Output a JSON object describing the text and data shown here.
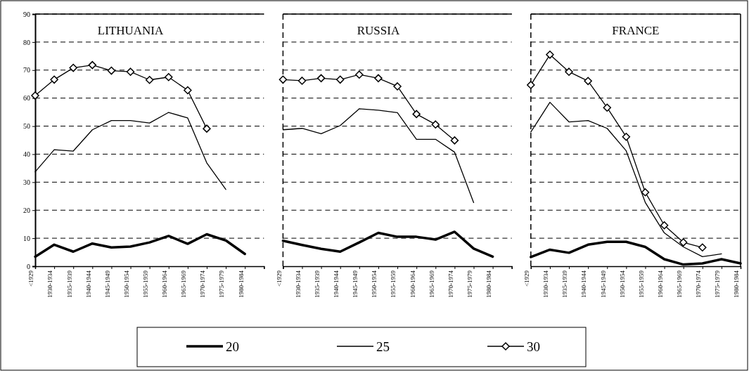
{
  "chart_data": [
    {
      "type": "line",
      "title": "LITHUANIA",
      "categories": [
        "<1929",
        "1930-1934",
        "1935-1939",
        "1940-1944",
        "1945-1949",
        "1950-1954",
        "1955-1959",
        "1960-1964",
        "1965-1969",
        "1970-1974",
        "1975-1979",
        "1980-1984"
      ],
      "ylim": [
        0,
        90
      ],
      "yticks": [
        0,
        10,
        20,
        30,
        40,
        50,
        60,
        70,
        80,
        90
      ],
      "grid": "y",
      "legend": "bottom",
      "series": [
        {
          "name": "20",
          "color": "#000000",
          "marker": "none",
          "values": [
            3.4,
            7.7,
            5.2,
            8.1,
            6.7,
            7.0,
            8.5,
            10.8,
            8.0,
            11.4,
            9.2,
            4.4
          ]
        },
        {
          "name": "25",
          "color": "#000000",
          "marker": "none",
          "values": [
            33.7,
            41.6,
            41.1,
            48.7,
            52.0,
            52.0,
            51.1,
            54.9,
            52.9,
            36.9,
            27.4,
            null
          ]
        },
        {
          "name": "30",
          "color": "#000000",
          "marker": "diamond",
          "values": [
            60.9,
            66.6,
            70.8,
            71.8,
            69.8,
            69.4,
            66.5,
            67.5,
            62.8,
            49.1,
            null,
            null
          ]
        }
      ]
    },
    {
      "type": "line",
      "title": "RUSSIA",
      "categories": [
        "<1929",
        "1930-1934",
        "1935-1939",
        "1940-1944",
        "1945-1949",
        "1950-1954",
        "1955-1959",
        "1960-1964",
        "1965-1969",
        "1970-1974",
        "1975-1979",
        "1980-1984"
      ],
      "ylim": [
        0,
        90
      ],
      "yticks": [
        0,
        10,
        20,
        30,
        40,
        50,
        60,
        70,
        80,
        90
      ],
      "grid": "y",
      "tick_labels": "x",
      "series": [
        {
          "color": "#000000",
          "marker": "none",
          "values": [
            9.1,
            7.6,
            6.2,
            5.2,
            8.5,
            11.9,
            10.5,
            10.5,
            9.5,
            12.3,
            6.3,
            3.4
          ]
        },
        {
          "color": "#000000",
          "marker": "none",
          "values": [
            48.7,
            49.2,
            47.3,
            50.2,
            56.2,
            55.7,
            54.8,
            45.3,
            45.3,
            40.7,
            22.7,
            null
          ]
        },
        {
          "color": "#000000",
          "marker": "diamond",
          "values": [
            66.6,
            66.2,
            67.1,
            66.6,
            68.4,
            67.1,
            64.2,
            54.3,
            50.6,
            44.9,
            null,
            null
          ]
        }
      ]
    },
    {
      "type": "line",
      "title": "FRANCE",
      "categories": [
        "<1929",
        "1930-1934",
        "1935-1939",
        "1940-1944",
        "1945-1949",
        "1950-1954",
        "1955-1959",
        "1960-1964",
        "1965-1969",
        "1970-1974",
        "1975-1979",
        "1980-1984"
      ],
      "ylim": [
        0,
        90
      ],
      "yticks": [
        0,
        10,
        20,
        30,
        40,
        50,
        60,
        70,
        80,
        90
      ],
      "grid": "y",
      "tick_labels": "x",
      "series": [
        {
          "color": "#000000",
          "marker": "none",
          "values": [
            3.3,
            5.9,
            4.8,
            7.7,
            8.7,
            8.7,
            6.9,
            2.5,
            0.6,
            1.0,
            2.5,
            1.0
          ]
        },
        {
          "color": "#000000",
          "marker": "none",
          "values": [
            47.9,
            58.5,
            51.5,
            52.0,
            49.2,
            41.2,
            22.8,
            11.9,
            6.9,
            3.4,
            4.4,
            null
          ]
        },
        {
          "color": "#000000",
          "marker": "diamond",
          "values": [
            64.7,
            75.5,
            69.4,
            66.1,
            56.6,
            46.2,
            26.4,
            14.6,
            8.5,
            6.7,
            null,
            null
          ]
        }
      ]
    }
  ]
}
